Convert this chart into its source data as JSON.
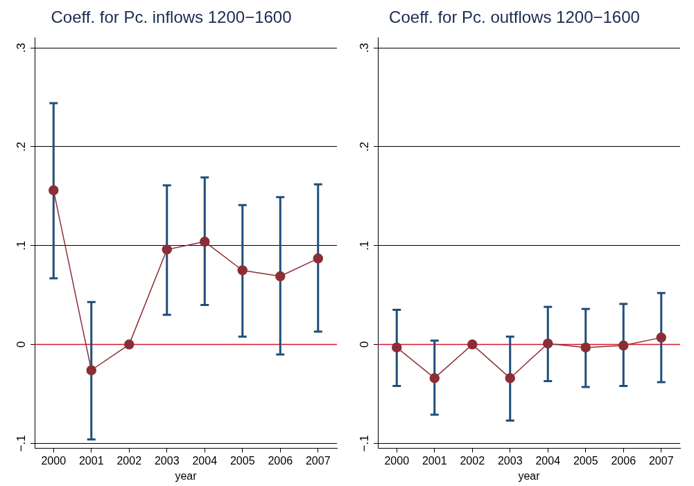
{
  "chart_data": [
    {
      "type": "line",
      "title": "Coeff. for Pc. inflows 1200−1600",
      "xlabel": "year",
      "categories": [
        "2000",
        "2001",
        "2002",
        "2003",
        "2004",
        "2005",
        "2006",
        "2007"
      ],
      "series": [
        {
          "color": "#8b2e35",
          "values": [
            0.156,
            -0.026,
            0,
            0.096,
            0.104,
            0.075,
            0.069,
            0.087
          ],
          "errors": [
            [
              0.067,
              0.244
            ],
            [
              -0.096,
              0.043
            ],
            null,
            [
              0.03,
              0.161
            ],
            [
              0.04,
              0.169
            ],
            [
              0.008,
              0.141
            ],
            [
              -0.01,
              0.149
            ],
            [
              0.013,
              0.162
            ]
          ]
        }
      ],
      "ylim": [
        -0.105,
        0.31
      ],
      "yticks": [
        {
          "value": -0.1,
          "label": "−.1"
        },
        {
          "value": 0,
          "label": "0"
        },
        {
          "value": 0.1,
          "label": ".1"
        },
        {
          "value": 0.2,
          "label": ".2"
        },
        {
          "value": 0.3,
          "label": ".3"
        }
      ],
      "ref_lines": [
        {
          "axis": "y",
          "value": 0,
          "color": "#d6142b"
        }
      ],
      "grid": "y",
      "legend": false,
      "marker": "circle",
      "line_style": "solid"
    },
    {
      "type": "line",
      "title": "Coeff. for Pc. outflows 1200−1600",
      "xlabel": "year",
      "categories": [
        "2000",
        "2001",
        "2002",
        "2003",
        "2004",
        "2005",
        "2006",
        "2007"
      ],
      "series": [
        {
          "color": "#8b2e35",
          "values": [
            -0.003,
            -0.034,
            0,
            -0.034,
            0.001,
            -0.003,
            -0.001,
            0.007
          ],
          "errors": [
            [
              -0.042,
              0.035
            ],
            [
              -0.071,
              0.004
            ],
            null,
            [
              -0.077,
              0.008
            ],
            [
              -0.037,
              0.038
            ],
            [
              -0.043,
              0.036
            ],
            [
              -0.042,
              0.041
            ],
            [
              -0.038,
              0.052
            ]
          ]
        }
      ],
      "ylim": [
        -0.105,
        0.31
      ],
      "yticks": [
        {
          "value": -0.1,
          "label": "−.1"
        },
        {
          "value": 0,
          "label": "0"
        },
        {
          "value": 0.1,
          "label": ".1"
        },
        {
          "value": 0.2,
          "label": ".2"
        },
        {
          "value": 0.3,
          "label": ".3"
        }
      ],
      "ref_lines": [
        {
          "axis": "y",
          "value": 0,
          "color": "#d6142b"
        }
      ],
      "grid": "y",
      "legend": false,
      "marker": "circle",
      "line_style": "solid"
    }
  ]
}
